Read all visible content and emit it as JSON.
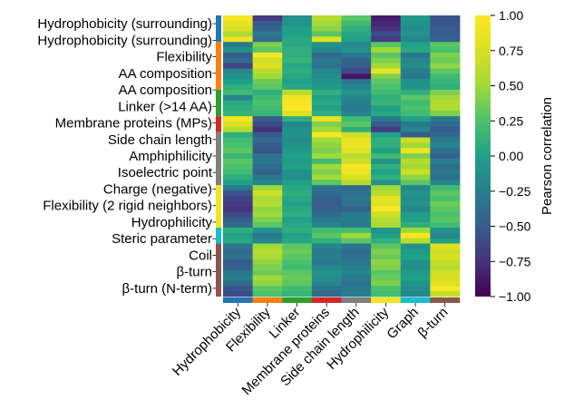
{
  "chart_data": {
    "type": "heatmap",
    "row_labels": [
      "Hydrophobicity (surrounding)",
      "Hydrophobicity (surrounding)",
      "Flexibility",
      "AA composition",
      "AA composition",
      "Linker (>14 AA)",
      "Membrane proteins (MPs)",
      "Side chain length",
      "Amphiphilicity",
      "Isoelectric point",
      "Charge (negative)",
      "Flexibility (2 rigid neighbors)",
      "Hydrophilicity",
      "Steric parameter",
      "Coil",
      "β-turn",
      "β-turn (N-term)"
    ],
    "column_labels": [
      "Hydrophobicity",
      "Flexibility",
      "Linker",
      "Membrane proteins",
      "Side chain length",
      "Hydrophilicity",
      "Graph",
      "β-turn"
    ],
    "row_groups": [
      {
        "name": "Hydrophobicity",
        "color": "#1f77b4",
        "rows": 5
      },
      {
        "name": "Flexibility",
        "color": "#ff7f0e",
        "rows": 9
      },
      {
        "name": "Linker",
        "color": "#2ca02c",
        "rows": 5
      },
      {
        "name": "Membrane proteins",
        "color": "#d62728",
        "rows": 3
      },
      {
        "name": "Side chain length",
        "color": "#7f7f7f",
        "rows": 10
      },
      {
        "name": "Hydrophilicity",
        "color": "#f2e51d",
        "rows": 8
      },
      {
        "name": "Graph",
        "color": "#17becf",
        "rows": 3
      },
      {
        "name": "β-turn",
        "color": "#8c564b",
        "rows": 10
      }
    ],
    "column_colors": [
      "#1f77b4",
      "#ff7f0e",
      "#2ca02c",
      "#d62728",
      "#7f7f7f",
      "#f2e51d",
      "#17becf",
      "#8c564b"
    ],
    "values": [
      [
        0.95,
        -0.7,
        -0.1,
        0.6,
        0.3,
        -0.85,
        -0.05,
        -0.55
      ],
      [
        0.85,
        -0.5,
        -0.1,
        0.5,
        0.2,
        -0.8,
        -0.1,
        -0.55
      ],
      [
        0.75,
        -0.45,
        0.0,
        0.45,
        0.1,
        -0.75,
        -0.15,
        -0.5
      ],
      [
        0.55,
        -0.3,
        0.0,
        0.3,
        0.05,
        -0.6,
        -0.1,
        -0.5
      ],
      [
        0.9,
        -0.4,
        0.05,
        0.8,
        0.0,
        -0.7,
        -0.2,
        -0.45
      ],
      [
        -0.3,
        0.4,
        0.05,
        -0.1,
        -0.2,
        0.3,
        0.0,
        0.3
      ],
      [
        -0.1,
        0.3,
        0.1,
        -0.2,
        -0.1,
        0.5,
        0.05,
        0.25
      ],
      [
        -0.5,
        0.95,
        0.1,
        -0.4,
        -0.3,
        0.3,
        -0.3,
        0.4
      ],
      [
        -0.4,
        0.7,
        0.15,
        -0.3,
        -0.45,
        0.4,
        -0.2,
        0.35
      ],
      [
        -0.65,
        0.8,
        0.05,
        -0.35,
        -0.5,
        0.5,
        -0.15,
        0.45
      ],
      [
        -0.2,
        0.6,
        0.1,
        -0.2,
        -0.6,
        0.85,
        -0.25,
        0.3
      ],
      [
        -0.1,
        0.5,
        0.05,
        -0.15,
        -0.9,
        0.4,
        -0.3,
        0.2
      ],
      [
        0.0,
        0.35,
        0.0,
        -0.1,
        -0.3,
        0.3,
        -0.1,
        0.15
      ],
      [
        0.1,
        0.3,
        0.05,
        -0.05,
        -0.2,
        0.25,
        -0.1,
        0.1
      ],
      [
        0.2,
        0.1,
        0.6,
        0.1,
        -0.1,
        0.2,
        0.1,
        0.4
      ],
      [
        -0.2,
        0.2,
        0.9,
        0.0,
        -0.2,
        0.1,
        0.3,
        0.5
      ],
      [
        0.05,
        0.25,
        0.95,
        0.05,
        -0.25,
        0.15,
        0.2,
        0.6
      ],
      [
        0.1,
        0.2,
        1.0,
        0.0,
        -0.3,
        0.0,
        0.25,
        0.55
      ],
      [
        0.15,
        0.15,
        0.8,
        0.1,
        -0.2,
        0.05,
        0.2,
        0.4
      ],
      [
        0.95,
        -0.5,
        0.1,
        0.85,
        0.2,
        -0.3,
        0.0,
        -0.3
      ],
      [
        0.75,
        -0.6,
        -0.2,
        0.4,
        0.3,
        -0.5,
        -0.3,
        -0.4
      ],
      [
        0.6,
        -0.75,
        -0.1,
        0.5,
        0.1,
        -0.7,
        -0.2,
        -0.5
      ],
      [
        0.1,
        -0.5,
        -0.1,
        0.95,
        0.7,
        0.0,
        -0.5,
        -0.4
      ],
      [
        0.2,
        -0.4,
        -0.15,
        0.5,
        0.85,
        0.1,
        0.7,
        -0.3
      ],
      [
        0.25,
        -0.5,
        -0.1,
        0.45,
        0.9,
        0.1,
        0.5,
        -0.2
      ],
      [
        0.3,
        -0.55,
        -0.05,
        0.4,
        0.8,
        0.0,
        0.9,
        -0.35
      ],
      [
        0.15,
        -0.35,
        0.0,
        0.5,
        0.6,
        0.2,
        0.4,
        -0.45
      ],
      [
        0.3,
        -0.3,
        -0.05,
        0.2,
        0.7,
        -0.1,
        0.6,
        -0.25
      ],
      [
        0.25,
        -0.4,
        0.0,
        0.5,
        0.95,
        0.1,
        0.5,
        -0.4
      ],
      [
        0.2,
        -0.45,
        -0.1,
        0.4,
        0.9,
        0.0,
        0.7,
        -0.3
      ],
      [
        0.1,
        -0.3,
        -0.15,
        0.5,
        0.75,
        0.1,
        0.45,
        -0.35
      ],
      [
        0.0,
        -0.2,
        0.0,
        0.3,
        0.6,
        -0.1,
        0.3,
        -0.2
      ],
      [
        -0.3,
        0.5,
        0.05,
        -0.35,
        -0.4,
        0.5,
        -0.2,
        0.2
      ],
      [
        -0.55,
        0.7,
        0.1,
        -0.4,
        -0.35,
        0.6,
        -0.1,
        0.3
      ],
      [
        -0.65,
        0.55,
        0.05,
        -0.45,
        -0.3,
        0.85,
        -0.15,
        0.25
      ],
      [
        -0.7,
        0.6,
        0.0,
        -0.5,
        -0.35,
        0.8,
        -0.1,
        0.35
      ],
      [
        -0.75,
        0.45,
        0.05,
        -0.45,
        -0.45,
        0.95,
        -0.2,
        0.3
      ],
      [
        -0.6,
        0.5,
        0.1,
        -0.4,
        -0.3,
        0.7,
        -0.05,
        0.25
      ],
      [
        -0.5,
        0.4,
        0.0,
        -0.3,
        -0.25,
        0.6,
        0.0,
        0.3
      ],
      [
        -0.4,
        0.3,
        0.05,
        -0.2,
        -0.3,
        0.55,
        0.1,
        0.2
      ],
      [
        0.1,
        -0.1,
        0.1,
        0.2,
        0.2,
        -0.1,
        0.5,
        -0.1
      ],
      [
        0.0,
        -0.3,
        0.0,
        0.3,
        0.5,
        0.0,
        0.95,
        -0.2
      ],
      [
        0.05,
        -0.2,
        0.05,
        0.1,
        0.3,
        0.1,
        0.6,
        0.0
      ],
      [
        -0.3,
        0.5,
        0.3,
        -0.2,
        -0.3,
        0.3,
        -0.1,
        0.8
      ],
      [
        -0.4,
        0.6,
        0.35,
        -0.3,
        -0.4,
        0.4,
        -0.05,
        0.7
      ],
      [
        -0.35,
        0.55,
        0.3,
        -0.25,
        -0.35,
        0.35,
        0.0,
        0.75
      ],
      [
        -0.5,
        0.45,
        0.25,
        -0.3,
        -0.3,
        0.45,
        -0.1,
        0.65
      ],
      [
        -0.45,
        0.4,
        0.2,
        -0.2,
        -0.25,
        0.4,
        -0.15,
        0.6
      ],
      [
        -0.3,
        0.35,
        0.3,
        -0.1,
        -0.2,
        0.3,
        -0.05,
        0.7
      ],
      [
        -0.25,
        0.5,
        0.35,
        -0.15,
        -0.3,
        0.35,
        0.0,
        0.75
      ],
      [
        -0.4,
        0.45,
        0.3,
        -0.2,
        -0.35,
        0.4,
        -0.1,
        0.8
      ],
      [
        -0.55,
        0.3,
        0.2,
        -0.35,
        -0.3,
        0.25,
        -0.15,
        0.95
      ],
      [
        -0.6,
        0.25,
        0.15,
        -0.4,
        -0.25,
        0.2,
        -0.2,
        0.65
      ]
    ],
    "colorbar": {
      "label": "Pearson correlation",
      "range": [
        -1.0,
        1.0
      ],
      "ticks": [
        "1.00",
        "0.75",
        "0.50",
        "0.25",
        "0.00",
        "−0.25",
        "−0.50",
        "−0.75",
        "−1.00"
      ],
      "tick_values": [
        1.0,
        0.75,
        0.5,
        0.25,
        0.0,
        -0.25,
        -0.5,
        -0.75,
        -1.0
      ]
    },
    "colormap": "viridis"
  }
}
